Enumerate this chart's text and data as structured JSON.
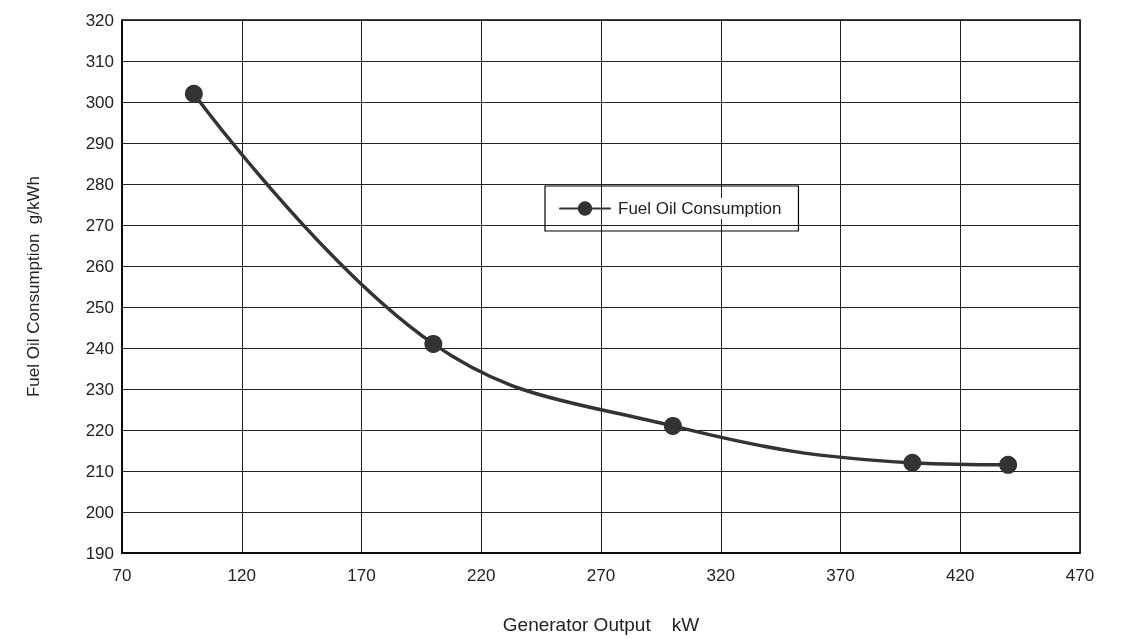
{
  "chart_data": {
    "type": "line",
    "xlabel": "Generator Output    kW",
    "ylabel": "Fuel Oil Consumption  g/kWh",
    "x": [
      100,
      200,
      300,
      400,
      440
    ],
    "series": [
      {
        "name": "Fuel Oil Consumption",
        "color": "#333333",
        "values": [
          302,
          241,
          221,
          212,
          211.5
        ]
      }
    ],
    "xlim": [
      70,
      470
    ],
    "xticks": [
      70,
      120,
      170,
      220,
      270,
      320,
      370,
      420,
      470
    ],
    "ylim": [
      190,
      320
    ],
    "yticks": [
      190,
      200,
      210,
      220,
      230,
      240,
      250,
      260,
      270,
      280,
      290,
      300,
      310,
      320
    ],
    "grid": true,
    "legend": "center",
    "marker": "circle",
    "line_style": "solid"
  }
}
